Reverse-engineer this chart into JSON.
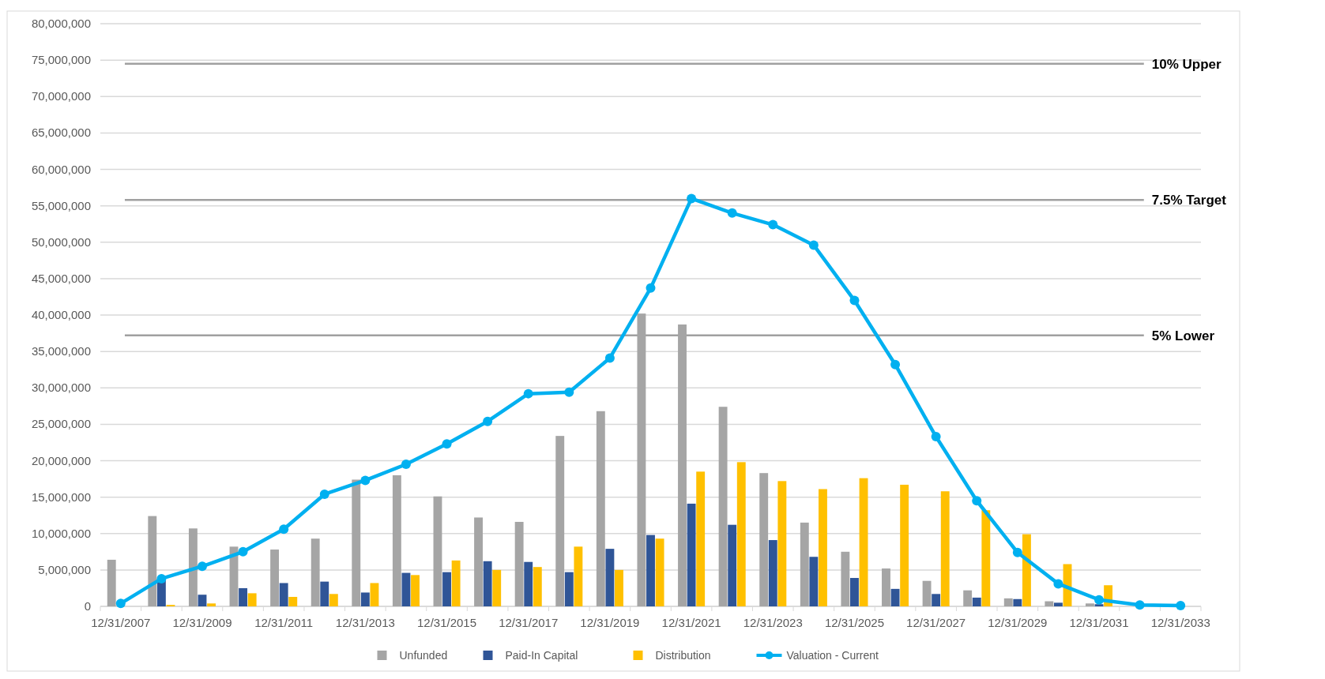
{
  "chart_data": {
    "type": "bar",
    "categories": [
      "12/31/2007",
      null,
      "12/31/2009",
      null,
      "12/31/2011",
      null,
      "12/31/2013",
      null,
      "12/31/2015",
      null,
      "12/31/2017",
      null,
      "12/31/2019",
      null,
      "12/31/2021",
      null,
      "12/31/2023",
      null,
      "12/31/2025",
      null,
      "12/31/2027",
      null,
      "12/31/2029",
      null,
      "12/31/2031",
      null,
      "12/31/2033"
    ],
    "series": [
      {
        "name": "Unfunded",
        "color": "#a5a5a5",
        "values": [
          6400000,
          12400000,
          10700000,
          8200000,
          7800000,
          9300000,
          17400000,
          18000000,
          15100000,
          12200000,
          11600000,
          23400000,
          26800000,
          40200000,
          38700000,
          27400000,
          18300000,
          11500000,
          7500000,
          5200000,
          3500000,
          2200000,
          1100000,
          700000,
          400000,
          0,
          0
        ]
      },
      {
        "name": "Paid-In Capital",
        "color": "#2f5597",
        "values": [
          0,
          3700000,
          1600000,
          2500000,
          3200000,
          3400000,
          1900000,
          4600000,
          4700000,
          6200000,
          6100000,
          4700000,
          7900000,
          9800000,
          14100000,
          11200000,
          9100000,
          6800000,
          3900000,
          2400000,
          1700000,
          1200000,
          1000000,
          500000,
          300000,
          0,
          0
        ]
      },
      {
        "name": "Distribution",
        "color": "#ffc000",
        "values": [
          0,
          200000,
          400000,
          1800000,
          1300000,
          1700000,
          3200000,
          4300000,
          6300000,
          5000000,
          5400000,
          8200000,
          5000000,
          9300000,
          18500000,
          19800000,
          17200000,
          16100000,
          17600000,
          16700000,
          15800000,
          13200000,
          9900000,
          5800000,
          2900000,
          0,
          0
        ]
      },
      {
        "name": "Valuation - Current",
        "type": "line",
        "color": "#00b0f0",
        "marker": "circle",
        "values": [
          400000,
          3800000,
          5500000,
          7500000,
          10600000,
          15400000,
          17300000,
          19500000,
          22300000,
          25400000,
          29200000,
          29400000,
          34100000,
          43700000,
          56000000,
          54000000,
          52400000,
          49600000,
          42000000,
          33200000,
          23300000,
          14500000,
          7400000,
          3100000,
          900000,
          200000,
          100000
        ]
      }
    ],
    "ylim": [
      0,
      80000000
    ],
    "yticks": [
      {
        "value": 0,
        "label": "0"
      },
      {
        "value": 5000000,
        "label": "5,000,000"
      },
      {
        "value": 10000000,
        "label": "10,000,000"
      },
      {
        "value": 15000000,
        "label": "15,000,000"
      },
      {
        "value": 20000000,
        "label": "20,000,000"
      },
      {
        "value": 25000000,
        "label": "25,000,000"
      },
      {
        "value": 30000000,
        "label": "30,000,000"
      },
      {
        "value": 35000000,
        "label": "35,000,000"
      },
      {
        "value": 40000000,
        "label": "40,000,000"
      },
      {
        "value": 45000000,
        "label": "45,000,000"
      },
      {
        "value": 50000000,
        "label": "50,000,000"
      },
      {
        "value": 55000000,
        "label": "55,000,000"
      },
      {
        "value": 60000000,
        "label": "60,000,000"
      },
      {
        "value": 65000000,
        "label": "65,000,000"
      },
      {
        "value": 70000000,
        "label": "70,000,000"
      },
      {
        "value": 75000000,
        "label": "75,000,000"
      },
      {
        "value": 80000000,
        "label": "80,000,000"
      }
    ],
    "ref_lines": [
      {
        "axis": "y",
        "value": 74500000,
        "label": "10% Upper",
        "color": "#a0a0a0"
      },
      {
        "axis": "y",
        "value": 55800000,
        "label": "7.5% Target",
        "color": "#a0a0a0"
      },
      {
        "axis": "y",
        "value": 37200000,
        "label": "5% Lower",
        "color": "#a0a0a0"
      }
    ],
    "grid": "y",
    "legend": "bottom"
  }
}
